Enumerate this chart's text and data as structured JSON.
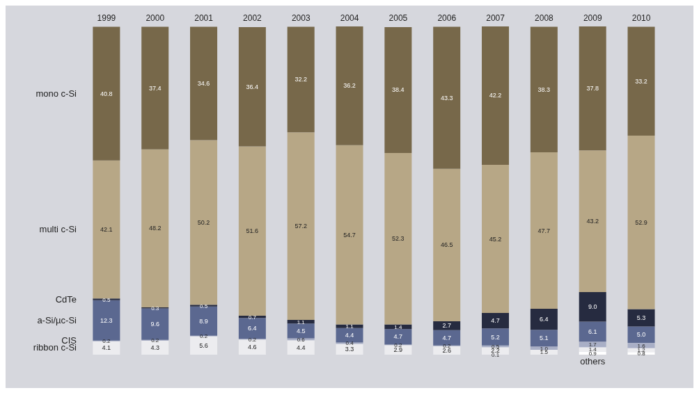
{
  "chart_data": {
    "type": "bar",
    "stacked": true,
    "categories": [
      "1999",
      "2000",
      "2001",
      "2002",
      "2003",
      "2004",
      "2005",
      "2006",
      "2007",
      "2008",
      "2009",
      "2010"
    ],
    "series": [
      {
        "name": "others",
        "color": "#ffffff",
        "values": [
          null,
          null,
          null,
          null,
          null,
          null,
          null,
          null,
          0.1,
          null,
          0.9,
          0.8
        ],
        "value_labels": [
          null,
          null,
          null,
          null,
          null,
          null,
          null,
          null,
          "0.1",
          null,
          "0.9",
          "0.8"
        ]
      },
      {
        "name": "ribbon c-Si",
        "color": "#ececef",
        "values": [
          4.1,
          4.3,
          5.6,
          4.6,
          4.4,
          3.3,
          2.9,
          2.6,
          2.2,
          1.5,
          1.4,
          1.2
        ],
        "value_labels": [
          "4.1",
          "4.3",
          "5.6",
          "4.6",
          "4.4",
          "3.3",
          "2.9",
          "2.6",
          "2.2",
          "1.5",
          "1.4",
          "1.2"
        ]
      },
      {
        "name": "CIS",
        "color": "#a9afc6",
        "values": [
          0.2,
          0.2,
          0.2,
          0.2,
          0.6,
          0.4,
          0.2,
          0.2,
          0.5,
          1.0,
          1.7,
          1.6
        ],
        "value_labels": [
          "0.2",
          "0.2",
          "0.2",
          "0.2",
          "0.6",
          "0.4",
          "0.2",
          "0.2",
          "0.5",
          "1.0",
          "1.7",
          "1.6"
        ]
      },
      {
        "name": "a-Si/µc-Si",
        "color": "#5b6890",
        "values": [
          12.3,
          9.6,
          8.9,
          6.4,
          4.5,
          4.4,
          4.7,
          4.7,
          5.2,
          5.1,
          6.1,
          5.0
        ],
        "value_labels": [
          "12.3",
          "9.6",
          "8.9",
          "6.4",
          "4.5",
          "4.4",
          "4.7",
          "4.7",
          "5.2",
          "5.1",
          "6.1",
          "5.0"
        ]
      },
      {
        "name": "CdTe",
        "color": "#262b40",
        "values": [
          0.5,
          0.3,
          0.5,
          0.7,
          1.1,
          1.1,
          1.4,
          2.7,
          4.7,
          6.4,
          9.0,
          5.3
        ],
        "value_labels": [
          "0.5",
          "0.3",
          "0.5",
          "0.7",
          "1.1",
          "1.1",
          "1.4",
          "2.7",
          "4.7",
          "6.4",
          "9.0",
          "5.3"
        ]
      },
      {
        "name": "multi c-Si",
        "color": "#b7a786",
        "values": [
          42.1,
          48.2,
          50.2,
          51.6,
          57.2,
          54.7,
          52.3,
          46.5,
          45.2,
          47.7,
          43.2,
          52.9
        ],
        "value_labels": [
          "42.1",
          "48.2",
          "50.2",
          "51.6",
          "57.2",
          "54.7",
          "52.3",
          "46.5",
          "45.2",
          "47.7",
          "43.2",
          "52.9"
        ]
      },
      {
        "name": "mono c-Si",
        "color": "#77684a",
        "values": [
          40.8,
          37.4,
          34.6,
          36.4,
          32.2,
          36.2,
          38.4,
          43.3,
          42.2,
          38.3,
          37.8,
          33.2
        ],
        "value_labels": [
          "40.8",
          "37.4",
          "34.6",
          "36.4",
          "32.2",
          "36.2",
          "38.4",
          "43.3",
          "42.2",
          "38.3",
          "37.8",
          "33.2"
        ]
      }
    ]
  }
}
